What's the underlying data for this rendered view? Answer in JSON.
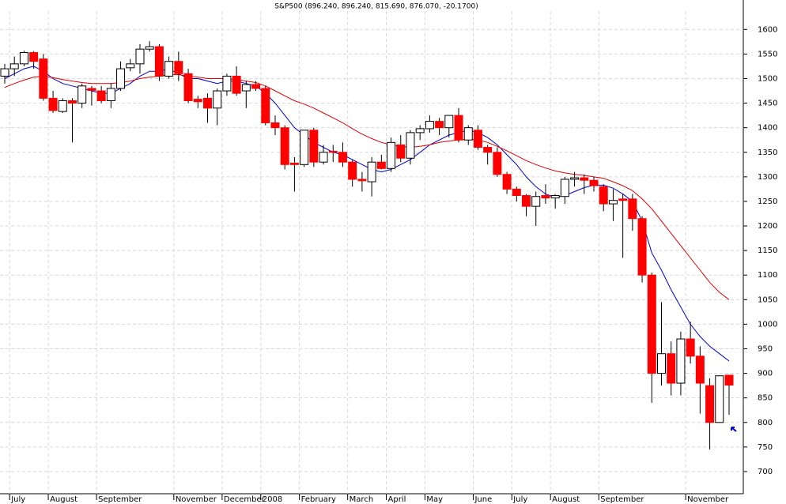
{
  "chart_data": {
    "type": "candlestick",
    "title": "S&P500 (896.240, 896.240, 815.690, 876.070, -20.1700)",
    "categories": [
      null,
      "July",
      null,
      null,
      null,
      "August",
      null,
      null,
      null,
      null,
      "September",
      null,
      null,
      null,
      null,
      null,
      null,
      null,
      "November",
      null,
      null,
      null,
      null,
      "December",
      null,
      null,
      null,
      "2008",
      null,
      null,
      null,
      "February",
      null,
      null,
      null,
      null,
      "March",
      null,
      null,
      null,
      "April",
      null,
      null,
      null,
      "May",
      null,
      null,
      null,
      null,
      "June",
      null,
      null,
      null,
      "July",
      null,
      null,
      null,
      "August",
      null,
      null,
      null,
      null,
      "September",
      null,
      null,
      null,
      null,
      null,
      null,
      null,
      null,
      "November",
      null,
      null,
      null,
      null
    ],
    "open": [
      1505,
      1520,
      1530,
      1553,
      1540,
      1460,
      1433,
      1455,
      1450,
      1480,
      1475,
      1455,
      1480,
      1522,
      1530,
      1560,
      1565,
      1505,
      1535,
      1510,
      1458,
      1460,
      1440,
      1475,
      1505,
      1475,
      1488,
      1480,
      1410,
      1400,
      1328,
      1325,
      1395,
      1330,
      1352,
      1350,
      1330,
      1295,
      1290,
      1330,
      1317,
      1365,
      1338,
      1390,
      1398,
      1413,
      1400,
      1425,
      1375,
      1395,
      1360,
      1350,
      1305,
      1275,
      1262,
      1240,
      1262,
      1257,
      1260,
      1295,
      1298,
      1293,
      1280,
      1245,
      1255,
      1255,
      1215,
      1100,
      900,
      940,
      880,
      970,
      935,
      875,
      800,
      896.24
    ],
    "high": [
      1530,
      1545,
      1557,
      1556,
      1550,
      1475,
      1460,
      1460,
      1490,
      1485,
      1485,
      1490,
      1535,
      1540,
      1570,
      1576,
      1570,
      1545,
      1555,
      1520,
      1465,
      1470,
      1480,
      1510,
      1525,
      1495,
      1495,
      1485,
      1425,
      1405,
      1340,
      1395,
      1400,
      1365,
      1365,
      1370,
      1335,
      1310,
      1340,
      1345,
      1380,
      1385,
      1395,
      1405,
      1425,
      1420,
      1425,
      1440,
      1405,
      1405,
      1365,
      1360,
      1310,
      1280,
      1265,
      1270,
      1285,
      1265,
      1300,
      1310,
      1305,
      1300,
      1285,
      1275,
      1265,
      1265,
      1220,
      1105,
      1045,
      965,
      985,
      1005,
      955,
      890,
      896,
      896.24
    ],
    "low": [
      1490,
      1505,
      1525,
      1520,
      1455,
      1430,
      1430,
      1370,
      1440,
      1445,
      1450,
      1440,
      1475,
      1515,
      1510,
      1555,
      1495,
      1500,
      1495,
      1450,
      1440,
      1410,
      1405,
      1465,
      1465,
      1440,
      1475,
      1405,
      1385,
      1315,
      1270,
      1320,
      1320,
      1325,
      1330,
      1320,
      1280,
      1270,
      1260,
      1315,
      1310,
      1330,
      1325,
      1375,
      1390,
      1385,
      1380,
      1370,
      1365,
      1355,
      1325,
      1300,
      1265,
      1250,
      1220,
      1200,
      1245,
      1235,
      1245,
      1280,
      1265,
      1270,
      1230,
      1210,
      1135,
      1190,
      1085,
      840,
      875,
      855,
      855,
      920,
      818,
      745,
      800,
      815.69
    ],
    "close": [
      1520,
      1530,
      1553,
      1535,
      1460,
      1435,
      1455,
      1450,
      1485,
      1476,
      1455,
      1480,
      1520,
      1530,
      1560,
      1565,
      1505,
      1535,
      1510,
      1455,
      1453,
      1440,
      1475,
      1505,
      1470,
      1488,
      1480,
      1410,
      1400,
      1325,
      1325,
      1395,
      1330,
      1350,
      1350,
      1330,
      1295,
      1292,
      1330,
      1317,
      1370,
      1338,
      1390,
      1398,
      1413,
      1400,
      1425,
      1375,
      1400,
      1360,
      1350,
      1305,
      1275,
      1262,
      1240,
      1260,
      1257,
      1262,
      1295,
      1298,
      1293,
      1282,
      1245,
      1252,
      1252,
      1215,
      1100,
      900,
      940,
      880,
      970,
      935,
      880,
      800,
      895,
      876.07
    ],
    "up_color": "#ffffff",
    "down_color": "#ff0000",
    "moving_averages": [
      {
        "color": "#0000cc",
        "values": [
          1500,
          1510,
          1520,
          1525,
          1515,
          1500,
          1490,
          1485,
          1480,
          1475,
          1470,
          1470,
          1480,
          1490,
          1505,
          1515,
          1515,
          1520,
          1510,
          1500,
          1500,
          1495,
          1490,
          1495,
          1495,
          1490,
          1485,
          1470,
          1450,
          1425,
          1400,
          1385,
          1370,
          1360,
          1350,
          1345,
          1335,
          1325,
          1315,
          1310,
          1315,
          1325,
          1335,
          1350,
          1365,
          1375,
          1385,
          1390,
          1395,
          1390,
          1380,
          1365,
          1345,
          1325,
          1300,
          1280,
          1265,
          1258,
          1262,
          1270,
          1278,
          1283,
          1283,
          1277,
          1265,
          1250,
          1210,
          1145,
          1110,
          1070,
          1035,
          1000,
          975,
          955,
          940,
          925
        ]
      },
      {
        "color": "#dd0000",
        "values": [
          1482,
          1490,
          1497,
          1503,
          1505,
          1502,
          1498,
          1495,
          1492,
          1490,
          1490,
          1490,
          1492,
          1495,
          1500,
          1503,
          1505,
          1508,
          1508,
          1505,
          1503,
          1500,
          1500,
          1500,
          1498,
          1495,
          1492,
          1485,
          1475,
          1465,
          1455,
          1448,
          1440,
          1430,
          1420,
          1410,
          1398,
          1387,
          1378,
          1370,
          1365,
          1362,
          1360,
          1362,
          1365,
          1370,
          1373,
          1375,
          1377,
          1375,
          1370,
          1362,
          1353,
          1343,
          1333,
          1325,
          1318,
          1312,
          1308,
          1305,
          1303,
          1300,
          1297,
          1290,
          1282,
          1272,
          1255,
          1235,
          1210,
          1185,
          1160,
          1135,
          1110,
          1085,
          1065,
          1050
        ]
      }
    ],
    "ylim": [
      634,
      1660
    ],
    "yticks": [
      700,
      750,
      800,
      850,
      900,
      950,
      1000,
      1050,
      1100,
      1150,
      1200,
      1250,
      1300,
      1350,
      1400,
      1450,
      1500,
      1550,
      1600
    ],
    "grid": true
  }
}
